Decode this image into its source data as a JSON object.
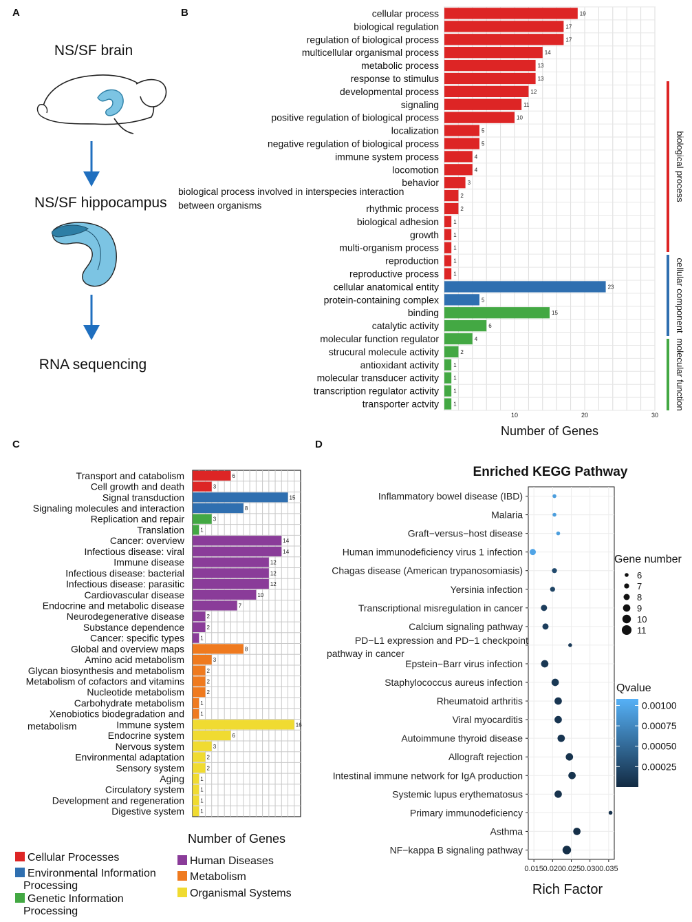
{
  "panels": {
    "a": "A",
    "b": "B",
    "c": "C",
    "d": "D"
  },
  "panelA": {
    "steps": [
      "NS/SF brain",
      "NS/SF hippocampus",
      "RNA sequencing"
    ]
  },
  "colors": {
    "red": "#dd2525",
    "blue": "#2f6fb0",
    "green": "#43a843",
    "purple": "#8a3c99",
    "orange": "#ef7a1f",
    "yellow": "#f0db31",
    "arrow": "#1f6fbf",
    "hippo": "#7cc4e3",
    "hippoDark": "#2d7fa6"
  },
  "chart_data": [
    {
      "type": "bar",
      "title": "",
      "xlabel": "Number of Genes",
      "ylabel": "",
      "xlim": [
        0,
        30
      ],
      "xticks": [
        "10",
        "20",
        "30"
      ],
      "groups": [
        "biological process",
        "cellular component",
        "molecular function"
      ],
      "categories": [
        "cellular process",
        "biological regulation",
        "regulation of biological process",
        "multicellular organismal process",
        "metabolic process",
        "response to stimulus",
        "developmental process",
        "signaling",
        "positive regulation of biological process",
        "localization",
        "negative regulation of biological process",
        "immune system process",
        "locomotion",
        "behavior",
        "biological process involved in interspecies interaction between organisms",
        "rhythmic process",
        "biological adhesion",
        "growth",
        "multi-organism process",
        "reproduction",
        "reproductive process",
        "cellular anatomical entity",
        "protein-containing complex",
        "binding",
        "catalytic activity",
        "molecular function regulator",
        "strucural molecule activity",
        "antioxidant activity",
        "molecular transducer activity",
        "transcription regulator activity",
        "transporter actvity"
      ],
      "values": [
        19,
        17,
        17,
        14,
        13,
        13,
        12,
        11,
        10,
        5,
        5,
        4,
        4,
        3,
        2,
        2,
        1,
        1,
        1,
        1,
        1,
        23,
        5,
        15,
        6,
        4,
        2,
        1,
        1,
        1,
        1
      ],
      "group_of": [
        0,
        0,
        0,
        0,
        0,
        0,
        0,
        0,
        0,
        0,
        0,
        0,
        0,
        0,
        0,
        0,
        0,
        0,
        0,
        0,
        0,
        1,
        1,
        2,
        2,
        2,
        2,
        2,
        2,
        2,
        2
      ]
    },
    {
      "type": "bar",
      "title": "",
      "xlabel": "Number of Genes",
      "ylabel": "",
      "xlim": [
        0,
        16
      ],
      "groups": [
        "Cellular Processes",
        "Environmental Information Processing",
        "Genetic Information Processing",
        "Human Diseases",
        "Metabolism",
        "Organismal Systems"
      ],
      "legend_labels": [
        [
          "Cellular Processes"
        ],
        [
          "Environmental Information",
          "Processing"
        ],
        [
          "Genetic Information",
          "Processing"
        ],
        [
          "Human Diseases"
        ],
        [
          "Metabolism"
        ],
        [
          "Organismal Systems"
        ]
      ],
      "categories": [
        "Transport and catabolism",
        "Cell growth and death",
        "Signal transduction",
        "Signaling molecules and interaction",
        "Replication and repair",
        "Translation",
        "Cancer: overview",
        "Infectious disease: viral",
        "Immune disease",
        "Infectious disease: bacterial",
        "Infectious disease: parasitic",
        "Cardiovascular disease",
        "Endocrine and metabolic disease",
        "Neurodegenerative disease",
        "Substance dependence",
        "Cancer: specific types",
        "Global and overview maps",
        "Amino acid metabolism",
        "Glycan biosynthesis and metabolism",
        "Metabolism of cofactors and vitamins",
        "Nucleotide metabolism",
        "Carbohydrate metabolism",
        "Xenobiotics biodegradation and metabolism",
        "Immune system",
        "Endocrine system",
        "Nervous system",
        "Environmental adaptation",
        "Sensory system",
        "Aging",
        "Circulatory system",
        "Development and regeneration",
        "Digestive system"
      ],
      "values": [
        6,
        3,
        15,
        8,
        3,
        1,
        14,
        14,
        12,
        12,
        12,
        10,
        7,
        2,
        2,
        1,
        8,
        3,
        2,
        2,
        2,
        1,
        1,
        16,
        6,
        3,
        2,
        2,
        1,
        1,
        1,
        1
      ],
      "group_of": [
        0,
        0,
        1,
        1,
        2,
        2,
        3,
        3,
        3,
        3,
        3,
        3,
        3,
        3,
        3,
        3,
        4,
        4,
        4,
        4,
        4,
        4,
        4,
        5,
        5,
        5,
        5,
        5,
        5,
        5,
        5,
        5
      ]
    },
    {
      "type": "scatter",
      "title": "Enriched KEGG Pathway",
      "xlabel": "Rich Factor",
      "ylabel": "",
      "xlim": [
        0.0135,
        0.0365
      ],
      "xticks": [
        "0.015",
        "0.020",
        "0.025",
        "0.030",
        "0.035"
      ],
      "categories": [
        "Inflammatory bowel disease (IBD)",
        "Malaria",
        "Graft−versus−host disease",
        "Human immunodeficiency virus 1 infection",
        "Chagas disease (American trypanosomiasis)",
        "Yersinia infection",
        "Transcriptional misregulation in cancer",
        "Calcium signaling pathway",
        "PD−L1 expression and PD−1 checkpoint pathway in cancer",
        "Epstein−Barr virus infection",
        "Staphylococcus aureus infection",
        "Rheumatoid arthritis",
        "Viral myocarditis",
        "Autoimmune thyroid disease",
        "Allograft rejection",
        "Intestinal immune network for IgA production",
        "Systemic lupus erythematosus",
        "Primary immunodeficiency",
        "Asthma",
        "NF−kappa B signaling pathway"
      ],
      "rich_factor": [
        0.0205,
        0.0205,
        0.0215,
        0.0147,
        0.0205,
        0.02,
        0.0177,
        0.0181,
        0.0247,
        0.0179,
        0.0207,
        0.0215,
        0.0215,
        0.0223,
        0.0245,
        0.0252,
        0.0215,
        0.0355,
        0.0265,
        0.0238
      ],
      "gene_number": [
        6,
        6,
        6,
        8,
        7,
        7,
        8,
        8,
        6,
        9,
        9,
        9,
        9,
        9,
        9,
        9,
        9,
        6,
        9,
        10
      ],
      "qvalue": [
        0.0009,
        0.0009,
        0.0009,
        0.00095,
        0.00025,
        0.0002,
        0.00015,
        0.00015,
        0.00012,
        0.0001,
        0.0001,
        8e-05,
        8e-05,
        8e-05,
        6e-05,
        6e-05,
        6e-05,
        5e-05,
        3e-05,
        3e-05
      ],
      "size_legend_title": "Gene number",
      "size_legend": [
        "6",
        "7",
        "8",
        "9",
        "10",
        "11"
      ],
      "color_legend_title": "Qvalue",
      "color_legend": [
        "0.00100",
        "0.00075",
        "0.00050",
        "0.00025"
      ]
    }
  ]
}
